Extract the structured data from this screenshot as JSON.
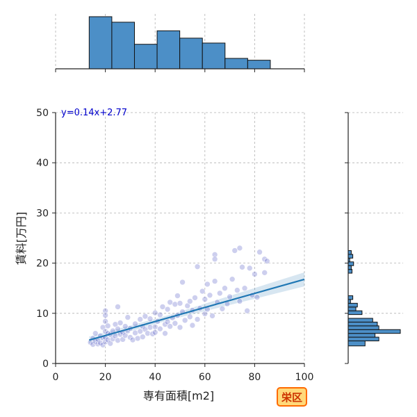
{
  "chart_data": {
    "type": "scatter",
    "xlabel": "専有面積[m2]",
    "ylabel": "賃料[万円]",
    "xlim": [
      0,
      100
    ],
    "ylim": [
      0,
      50
    ],
    "xticks": [
      "0",
      "20",
      "40",
      "60",
      "80",
      "100"
    ],
    "yticks": [
      "0",
      "10",
      "20",
      "30",
      "40",
      "50"
    ],
    "grid": true,
    "regression": {
      "equation": "y=0.14x+2.77",
      "slope": 0.14,
      "intercept": 2.77,
      "x_range": [
        13.5,
        100
      ],
      "color": "#1f77b4",
      "label_color": "#0000cc"
    },
    "point_color": "#5b5fc7",
    "histogram_color": "#4c8fc7",
    "x_histogram": {
      "bin_edges": [
        13.5,
        22.6,
        31.7,
        40.8,
        49.9,
        59.0,
        68.1,
        77.2,
        86.3
      ],
      "counts": [
        85,
        76,
        40,
        62,
        50,
        42,
        17,
        14
      ]
    },
    "y_histogram": {
      "bin_edges": [
        3.5,
        4.5,
        5.25,
        6.0,
        6.75,
        7.5,
        8.25,
        9.0,
        9.75,
        10.5,
        11.25,
        12.0,
        12.75,
        13.5,
        14.25,
        15.0,
        15.75,
        16.5,
        17.25,
        18.0,
        18.75,
        19.5,
        20.25,
        21.0,
        21.75,
        22.5
      ],
      "counts": [
        22,
        40,
        35,
        68,
        40,
        38,
        32,
        0,
        18,
        10,
        12,
        3,
        6,
        0,
        0,
        0,
        0,
        0,
        0,
        5,
        4,
        7,
        2,
        6,
        4
      ]
    },
    "points": [
      [
        14,
        4.2
      ],
      [
        15,
        3.8
      ],
      [
        15,
        5.0
      ],
      [
        16,
        4.4
      ],
      [
        16,
        6.0
      ],
      [
        17,
        3.9
      ],
      [
        17,
        4.8
      ],
      [
        18,
        5.5
      ],
      [
        18,
        4.1
      ],
      [
        19,
        7.2
      ],
      [
        19,
        5.1
      ],
      [
        19,
        3.7
      ],
      [
        20,
        10.5
      ],
      [
        20,
        9.6
      ],
      [
        20,
        8.4
      ],
      [
        20,
        6.4
      ],
      [
        20,
        5.2
      ],
      [
        20,
        4.3
      ],
      [
        21,
        7.5
      ],
      [
        21,
        6.0
      ],
      [
        21,
        4.7
      ],
      [
        22,
        5.8
      ],
      [
        22,
        4.0
      ],
      [
        23,
        6.5
      ],
      [
        23,
        4.9
      ],
      [
        24,
        7.8
      ],
      [
        24,
        5.5
      ],
      [
        25,
        11.3
      ],
      [
        25,
        6.9
      ],
      [
        25,
        4.6
      ],
      [
        26,
        8.1
      ],
      [
        26,
        5.8
      ],
      [
        27,
        6.2
      ],
      [
        27,
        4.8
      ],
      [
        28,
        7.4
      ],
      [
        28,
        5.6
      ],
      [
        29,
        9.2
      ],
      [
        29,
        6.5
      ],
      [
        30,
        7.0
      ],
      [
        30,
        5.2
      ],
      [
        31,
        4.7
      ],
      [
        32,
        6.1
      ],
      [
        32,
        7.9
      ],
      [
        33,
        5.0
      ],
      [
        34,
        8.8
      ],
      [
        34,
        6.4
      ],
      [
        35,
        7.4
      ],
      [
        35,
        5.3
      ],
      [
        36,
        9.4
      ],
      [
        36,
        6.8
      ],
      [
        37,
        6.0
      ],
      [
        38,
        7.2
      ],
      [
        38,
        8.9
      ],
      [
        39,
        5.9
      ],
      [
        40,
        10.1
      ],
      [
        40,
        7.3
      ],
      [
        40,
        6.2
      ],
      [
        41,
        8.4
      ],
      [
        42,
        9.7
      ],
      [
        42,
        6.9
      ],
      [
        43,
        11.3
      ],
      [
        44,
        7.8
      ],
      [
        44,
        6.0
      ],
      [
        45,
        10.8
      ],
      [
        45,
        8.3
      ],
      [
        46,
        7.4
      ],
      [
        46,
        12.2
      ],
      [
        47,
        9.1
      ],
      [
        48,
        11.8
      ],
      [
        48,
        8.0
      ],
      [
        49,
        13.5
      ],
      [
        49,
        9.6
      ],
      [
        50,
        7.2
      ],
      [
        50,
        12.0
      ],
      [
        51,
        16.2
      ],
      [
        51,
        10.3
      ],
      [
        52,
        8.6
      ],
      [
        53,
        11.5
      ],
      [
        54,
        9.3
      ],
      [
        54,
        12.4
      ],
      [
        55,
        7.6
      ],
      [
        55,
        10.6
      ],
      [
        56,
        13.1
      ],
      [
        57,
        19.3
      ],
      [
        57,
        8.8
      ],
      [
        58,
        11.0
      ],
      [
        59,
        14.4
      ],
      [
        60,
        9.9
      ],
      [
        60,
        12.8
      ],
      [
        61,
        15.8
      ],
      [
        61,
        10.8
      ],
      [
        62,
        13.6
      ],
      [
        63,
        9.5
      ],
      [
        64,
        21.7
      ],
      [
        64,
        20.8
      ],
      [
        64,
        16.4
      ],
      [
        65,
        12.2
      ],
      [
        66,
        14.0
      ],
      [
        67,
        10.9
      ],
      [
        68,
        15.0
      ],
      [
        69,
        11.9
      ],
      [
        70,
        13.3
      ],
      [
        71,
        16.8
      ],
      [
        72,
        22.5
      ],
      [
        73,
        14.6
      ],
      [
        74,
        23.0
      ],
      [
        74,
        12.4
      ],
      [
        75,
        19.2
      ],
      [
        76,
        15.0
      ],
      [
        77,
        10.5
      ],
      [
        78,
        19.0
      ],
      [
        79,
        13.6
      ],
      [
        80,
        17.8
      ],
      [
        81,
        13.2
      ],
      [
        82,
        22.2
      ],
      [
        84,
        20.8
      ],
      [
        84,
        18.1
      ],
      [
        85,
        20.4
      ]
    ]
  },
  "badge": {
    "label": "栄区",
    "bg_color": "#ffd97a",
    "border_color": "#ff6a00",
    "text_color": "#cc3300"
  }
}
